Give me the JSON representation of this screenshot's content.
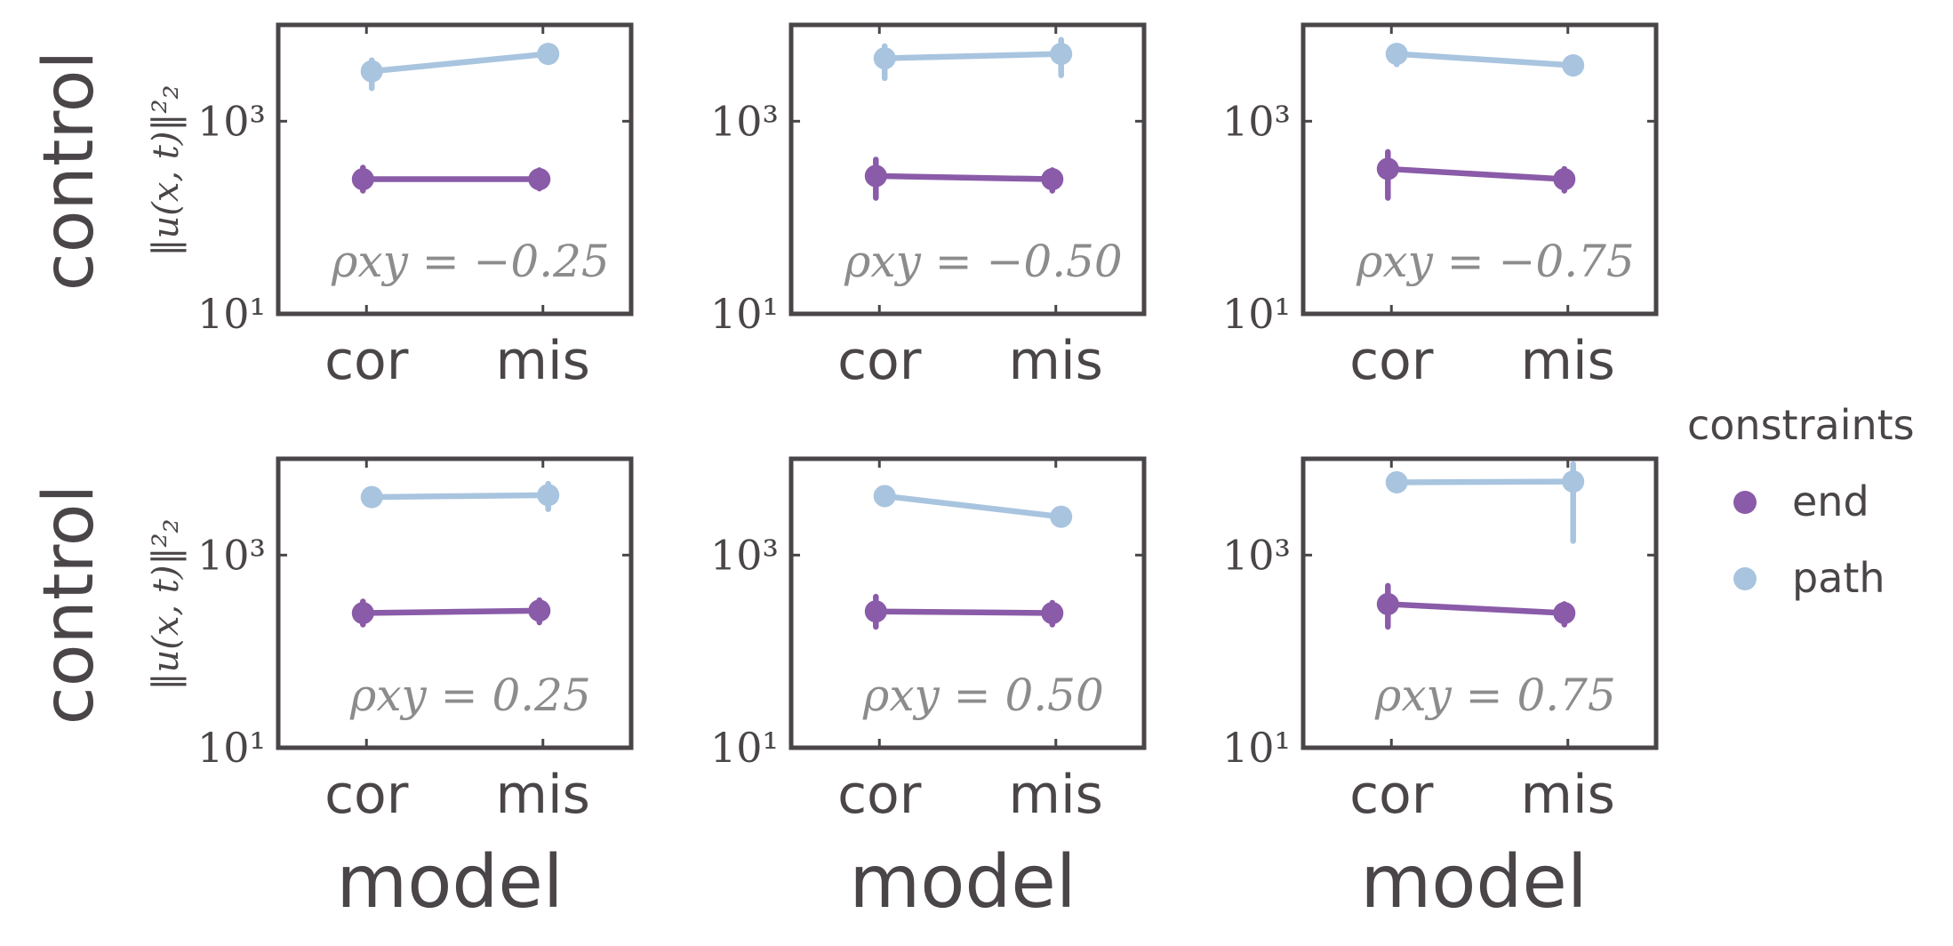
{
  "chart_data": [
    {
      "type": "line",
      "panel": "row1-col1",
      "ylabel": "control",
      "ylabel_math": "‖u(x, t)‖²₂",
      "xlabel": "",
      "yscale": "log",
      "ylim": [
        10,
        10000
      ],
      "yticks": [
        "10¹",
        "10³"
      ],
      "categories": [
        "cor",
        "mis"
      ],
      "annotation": "ρxy = −0.25",
      "series": [
        {
          "name": "end",
          "values": [
            250,
            250
          ],
          "err_low": [
            190,
            200
          ],
          "err_high": [
            330,
            310
          ]
        },
        {
          "name": "path",
          "values": [
            3300,
            5000
          ],
          "err_low": [
            2200,
            4200
          ],
          "err_high": [
            4300,
            5600
          ]
        }
      ]
    },
    {
      "type": "line",
      "panel": "row1-col2",
      "xlabel": "",
      "yscale": "log",
      "ylim": [
        10,
        10000
      ],
      "yticks": [
        "10¹",
        "10³"
      ],
      "categories": [
        "cor",
        "mis"
      ],
      "annotation": "ρxy = −0.50",
      "series": [
        {
          "name": "end",
          "values": [
            270,
            250
          ],
          "err_low": [
            160,
            190
          ],
          "err_high": [
            400,
            310
          ]
        },
        {
          "name": "path",
          "values": [
            4500,
            5000
          ],
          "err_low": [
            2800,
            3000
          ],
          "err_high": [
            6000,
            7000
          ]
        }
      ]
    },
    {
      "type": "line",
      "panel": "row1-col3",
      "xlabel": "",
      "yscale": "log",
      "ylim": [
        10,
        10000
      ],
      "yticks": [
        "10¹",
        "10³"
      ],
      "categories": [
        "cor",
        "mis"
      ],
      "annotation": "ρxy = −0.75",
      "series": [
        {
          "name": "end",
          "values": [
            320,
            250
          ],
          "err_low": [
            160,
            190
          ],
          "err_high": [
            480,
            320
          ]
        },
        {
          "name": "path",
          "values": [
            5000,
            3800
          ],
          "err_low": [
            3900,
            3100
          ],
          "err_high": [
            5700,
            4300
          ]
        }
      ]
    },
    {
      "type": "line",
      "panel": "row2-col1",
      "ylabel": "control",
      "ylabel_math": "‖u(x, t)‖²₂",
      "xlabel": "model",
      "yscale": "log",
      "ylim": [
        10,
        10000
      ],
      "yticks": [
        "10¹",
        "10³"
      ],
      "categories": [
        "cor",
        "mis"
      ],
      "annotation": "ρxy = 0.25",
      "series": [
        {
          "name": "end",
          "values": [
            250,
            265
          ],
          "err_low": [
            190,
            200
          ],
          "err_high": [
            330,
            340
          ]
        },
        {
          "name": "path",
          "values": [
            4000,
            4200
          ],
          "err_low": [
            3600,
            3000
          ],
          "err_high": [
            4500,
            5500
          ]
        }
      ]
    },
    {
      "type": "line",
      "panel": "row2-col2",
      "xlabel": "model",
      "yscale": "log",
      "ylim": [
        10,
        10000
      ],
      "yticks": [
        "10¹",
        "10³"
      ],
      "categories": [
        "cor",
        "mis"
      ],
      "annotation": "ρxy = 0.50",
      "series": [
        {
          "name": "end",
          "values": [
            260,
            250
          ],
          "err_low": [
            180,
            190
          ],
          "err_high": [
            370,
            320
          ]
        },
        {
          "name": "path",
          "values": [
            4100,
            2500
          ],
          "err_low": [
            3600,
            2100
          ],
          "err_high": [
            4600,
            3000
          ]
        }
      ]
    },
    {
      "type": "line",
      "panel": "row2-col3",
      "xlabel": "model",
      "yscale": "log",
      "ylim": [
        10,
        10000
      ],
      "yticks": [
        "10¹",
        "10³"
      ],
      "categories": [
        "cor",
        "mis"
      ],
      "annotation": "ρxy = 0.75",
      "series": [
        {
          "name": "end",
          "values": [
            310,
            250
          ],
          "err_low": [
            180,
            190
          ],
          "err_high": [
            480,
            310
          ]
        },
        {
          "name": "path",
          "values": [
            5700,
            5800
          ],
          "err_low": [
            4700,
            1400
          ],
          "err_high": [
            6800,
            8800
          ]
        }
      ]
    }
  ],
  "legend": {
    "title": "constraints",
    "placement": "right",
    "items": [
      {
        "name": "end",
        "color": "#8a5ba8"
      },
      {
        "name": "path",
        "color": "#a8c4df"
      }
    ]
  },
  "colors": {
    "axis": "#4a4548",
    "annotation": "#8c8c8c",
    "end": "#8a5ba8",
    "path": "#a8c4df"
  }
}
